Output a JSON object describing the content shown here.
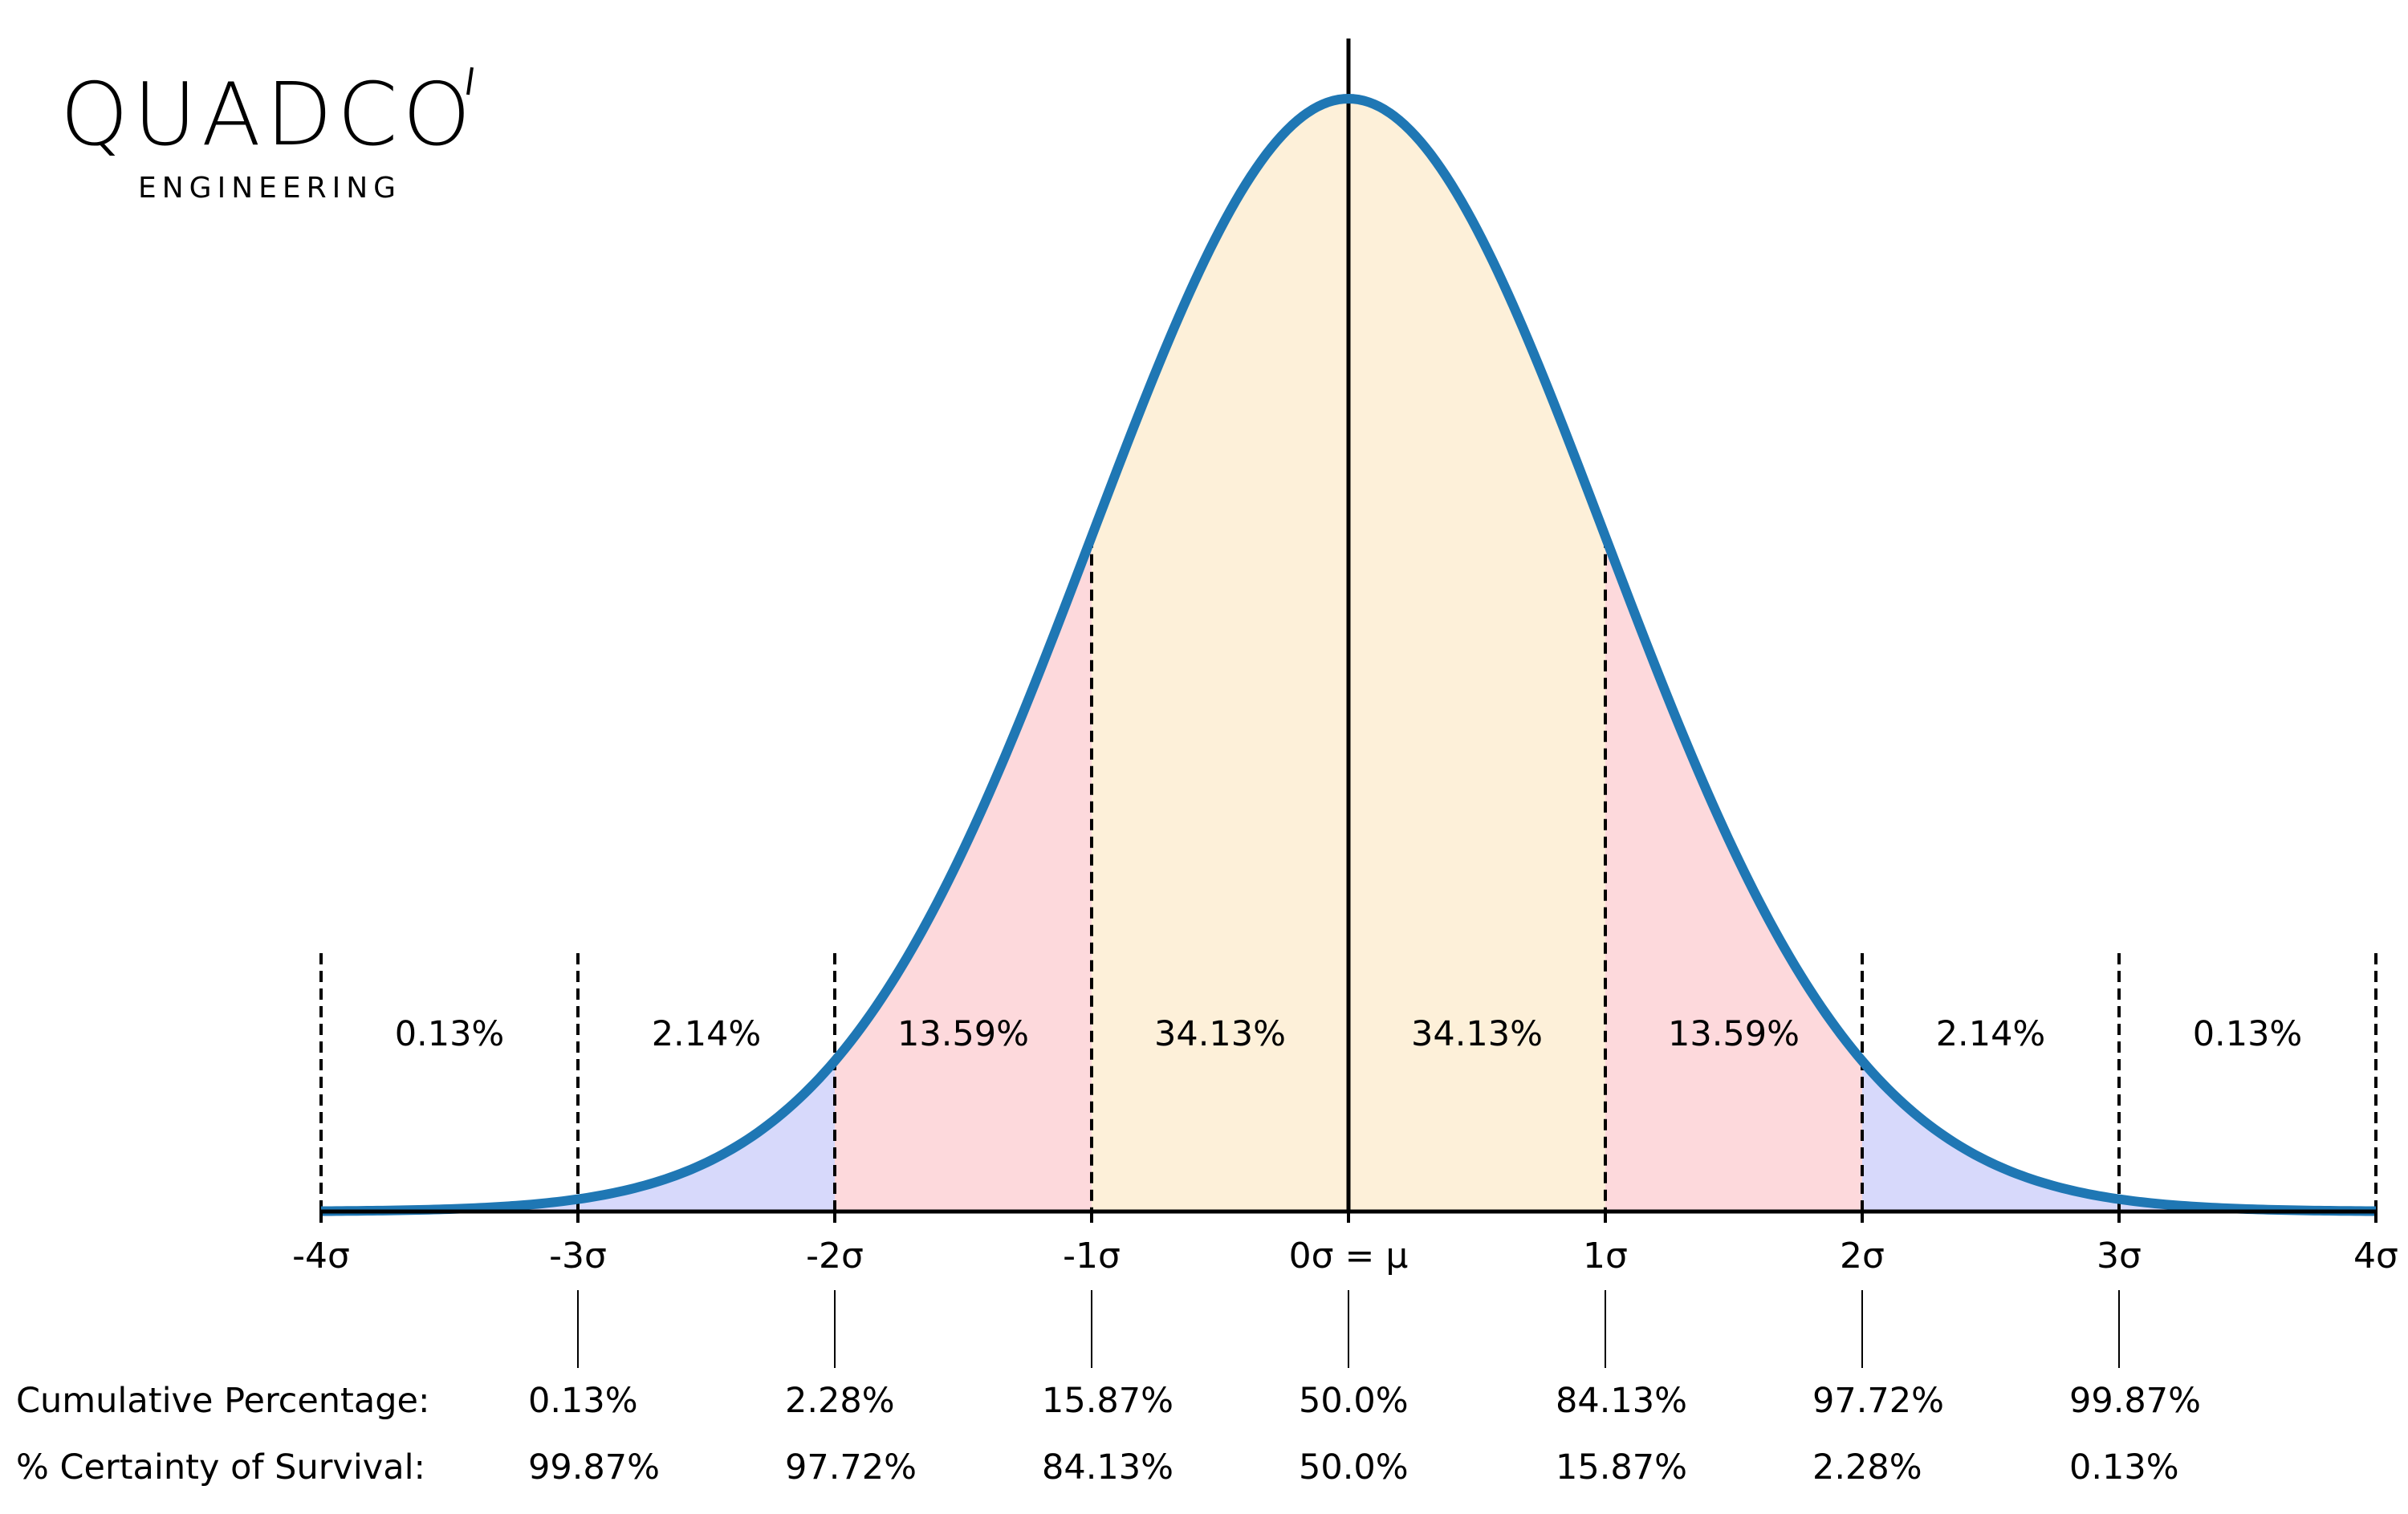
{
  "logo": {
    "name": "QUADCO",
    "tagline": "ENGINEERING"
  },
  "chart_data": {
    "type": "area",
    "title": "",
    "xlabel": "",
    "ylabel": "",
    "distribution": "standard normal",
    "xlim": [
      -4,
      4
    ],
    "x_ticks": [
      -4,
      -3,
      -2,
      -1,
      0,
      1,
      2,
      3,
      4
    ],
    "x_tick_labels": [
      "-4σ",
      "-3σ",
      "-2σ",
      "-1σ",
      "0σ = μ",
      "1σ",
      "2σ",
      "3σ",
      "4σ"
    ],
    "region_values": [
      {
        "from": -4,
        "to": -3,
        "label": "0.13%"
      },
      {
        "from": -3,
        "to": -2,
        "label": "2.14%"
      },
      {
        "from": -2,
        "to": -1,
        "label": "13.59%"
      },
      {
        "from": -1,
        "to": 0,
        "label": "34.13%"
      },
      {
        "from": 0,
        "to": 1,
        "label": "34.13%"
      },
      {
        "from": 1,
        "to": 2,
        "label": "13.59%"
      },
      {
        "from": 2,
        "to": 3,
        "label": "2.14%"
      },
      {
        "from": 3,
        "to": 4,
        "label": "0.13%"
      }
    ],
    "cumulative": {
      "label": "Cumulative Percentage:",
      "x": [
        -3,
        -2,
        -1,
        0,
        1,
        2,
        3
      ],
      "values": [
        "0.13%",
        "2.28%",
        "15.87%",
        "50.0%",
        "84.13%",
        "97.72%",
        "99.87%"
      ]
    },
    "survival": {
      "label": "% Certainty of Survival:",
      "x": [
        -3,
        -2,
        -1,
        0,
        1,
        2,
        3
      ],
      "values": [
        "99.87%",
        "97.72%",
        "84.13%",
        "50.0%",
        "15.87%",
        "2.28%",
        "0.13%"
      ]
    },
    "colors": {
      "curve": "#1f77b4",
      "inner": "#fdf0d9",
      "middle": "#fdd9dc",
      "outer": "#d7d9fb",
      "axis": "#000000"
    }
  }
}
